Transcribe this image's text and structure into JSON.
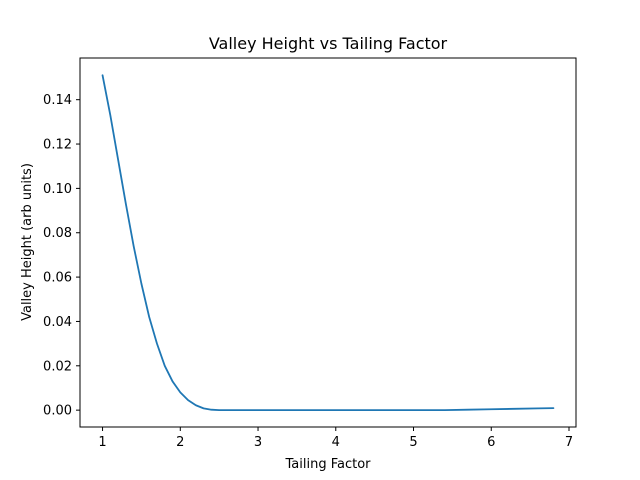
{
  "chart_data": {
    "type": "line",
    "title": "Valley Height vs Tailing Factor",
    "xlabel": "Tailing Factor",
    "ylabel": "Valley Height (arb units)",
    "xlim": [
      0.71,
      7.09
    ],
    "ylim": [
      -0.0076,
      0.1588
    ],
    "xticks": [
      1,
      2,
      3,
      4,
      5,
      6,
      7
    ],
    "xtick_labels": [
      "1",
      "2",
      "3",
      "4",
      "5",
      "6",
      "7"
    ],
    "yticks": [
      0.0,
      0.02,
      0.04,
      0.06,
      0.08,
      0.1,
      0.12,
      0.14
    ],
    "ytick_labels": [
      "0.00",
      "0.02",
      "0.04",
      "0.06",
      "0.08",
      "0.10",
      "0.12",
      "0.14"
    ],
    "grid": false,
    "series": [
      {
        "color": "#1f77b4",
        "x": [
          1.0,
          1.1,
          1.2,
          1.3,
          1.4,
          1.5,
          1.6,
          1.7,
          1.8,
          1.9,
          2.0,
          2.1,
          2.2,
          2.3,
          2.4,
          2.5,
          3.0,
          3.5,
          4.0,
          4.5,
          5.0,
          5.4,
          5.7,
          6.0,
          6.3,
          6.6,
          6.8
        ],
        "y": [
          0.151,
          0.133,
          0.113,
          0.093,
          0.074,
          0.057,
          0.042,
          0.03,
          0.02,
          0.013,
          0.008,
          0.0045,
          0.0022,
          0.0008,
          0.0002,
          0.0,
          0.0,
          0.0,
          0.0,
          0.0,
          0.0,
          0.0,
          0.0002,
          0.0004,
          0.0006,
          0.0008,
          0.0009
        ]
      }
    ]
  }
}
